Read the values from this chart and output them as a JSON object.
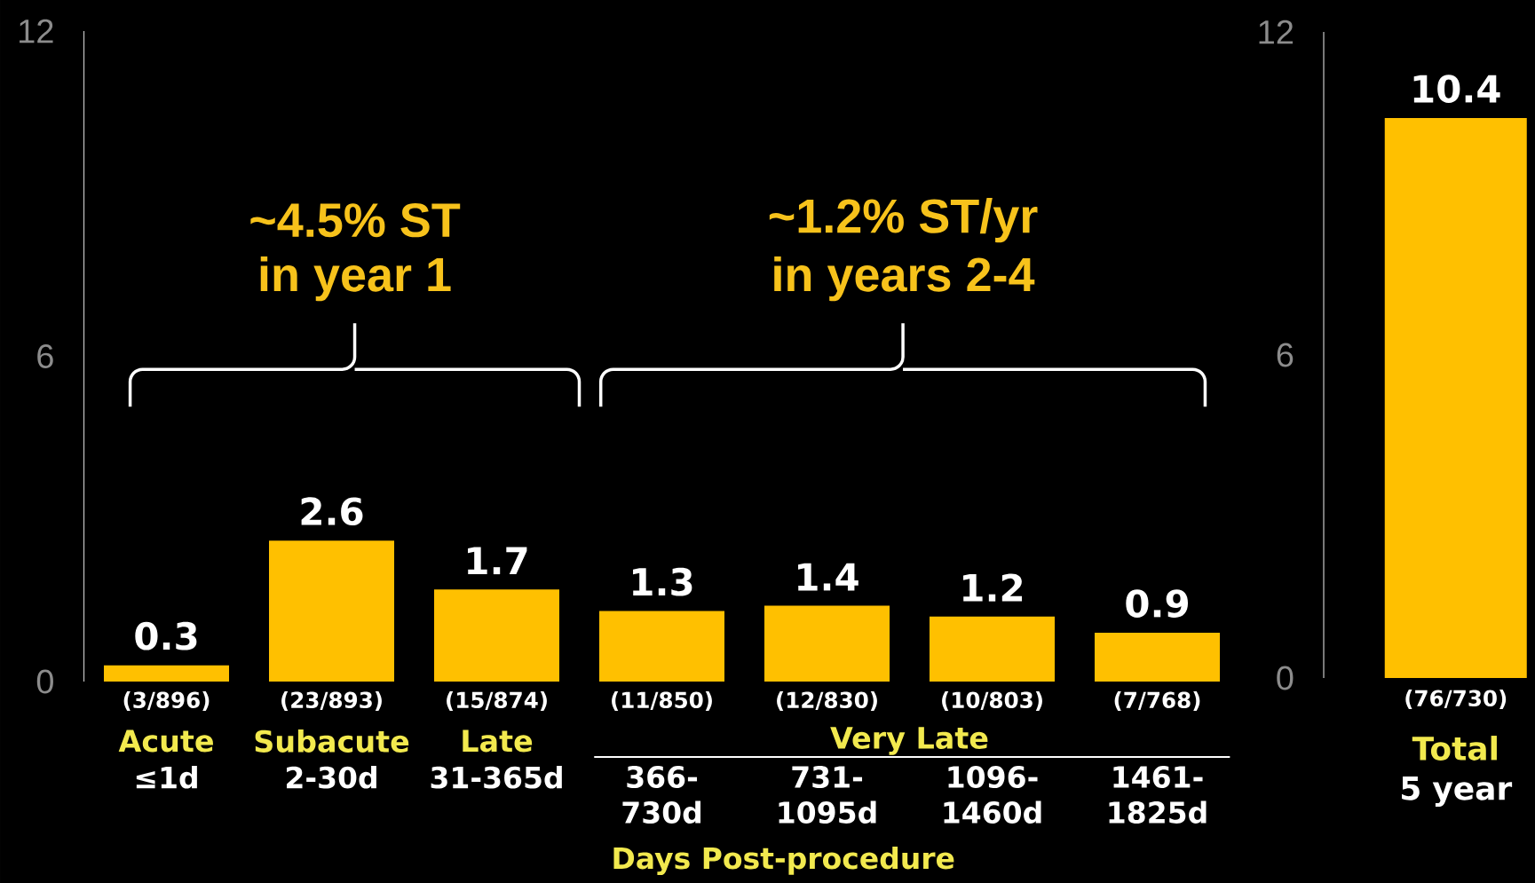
{
  "chart_data": [
    {
      "type": "bar",
      "categories": [
        "≤1d",
        "2-30d",
        "31-365d",
        "366-730d",
        "731-1095d",
        "1096-1460d",
        "1461-1825d"
      ],
      "values": [
        0.3,
        2.6,
        1.7,
        1.3,
        1.4,
        1.2,
        0.9
      ],
      "color": "#ffc000",
      "ylim": [
        0,
        12
      ],
      "yticks": [
        0,
        6,
        12
      ],
      "data_labels": true,
      "xlabel": "Days Post-procedure",
      "annotations": [
        "(3/896)",
        "(23/893)",
        "(15/874)",
        "(11/850)",
        "(12/830)",
        "(10/803)",
        "(7/768)",
        "Acute",
        "Subacute",
        "Late",
        "~4.5% ST",
        "in year 1",
        "~1.2% ST/yr",
        "in years 2-4",
        "Very Late"
      ]
    },
    {
      "type": "bar",
      "categories": [
        "5 year"
      ],
      "values": [
        10.4
      ],
      "color": "#ffc000",
      "ylim": [
        0,
        12
      ],
      "yticks": [
        0,
        6,
        12
      ],
      "data_labels": true,
      "annotations": [
        "(76/730)",
        "Total"
      ]
    }
  ]
}
